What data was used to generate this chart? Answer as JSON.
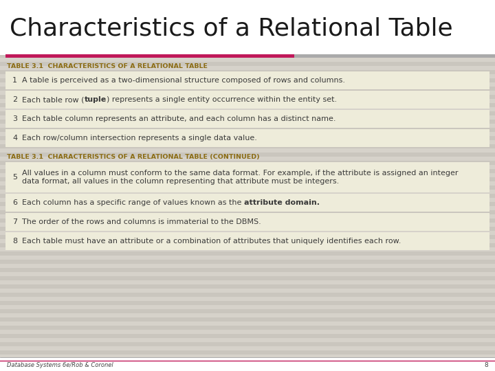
{
  "title": "Characteristics of a Relational Table",
  "title_color": "#1a1a1a",
  "title_fontsize": 26,
  "slide_bg": "#d6d2ca",
  "stripe_bg": "#cac6be",
  "content_bg": "#eeecda",
  "header_line_color1": "#c0185a",
  "header_line_color2": "#888888",
  "table_label_color": "#8b6c14",
  "table_label_1": "TABLE 3.1  CHARACTERISTICS OF A RELATIONAL TABLE",
  "table_label_2": "TABLE 3.1  CHARACTERISTICS OF A RELATIONAL TABLE (CONTINUED)",
  "rows_group1": [
    {
      "num": "1",
      "parts": [
        {
          "t": "A table is perceived as a two-dimensional structure composed of rows and columns.",
          "b": false
        }
      ]
    },
    {
      "num": "2",
      "parts": [
        {
          "t": "Each table row (",
          "b": false
        },
        {
          "t": "tuple",
          "b": true
        },
        {
          "t": ") represents a single entity occurrence within the entity set.",
          "b": false
        }
      ]
    },
    {
      "num": "3",
      "parts": [
        {
          "t": "Each table column represents an attribute, and each column has a distinct name.",
          "b": false
        }
      ]
    },
    {
      "num": "4",
      "parts": [
        {
          "t": "Each row/column intersection represents a single data value.",
          "b": false
        }
      ]
    }
  ],
  "rows_group2": [
    {
      "num": "5",
      "parts": [
        {
          "t": "All values in a column must conform to the same data format. For example, if the attribute is assigned an integer\ndata format, all values in the column representing that attribute must be integers.",
          "b": false
        }
      ]
    },
    {
      "num": "6",
      "parts": [
        {
          "t": "Each column has a specific range of values known as the ",
          "b": false
        },
        {
          "t": "attribute domain.",
          "b": true
        }
      ]
    },
    {
      "num": "7",
      "parts": [
        {
          "t": "The order of the rows and columns is immaterial to the DBMS.",
          "b": false
        }
      ]
    },
    {
      "num": "8",
      "parts": [
        {
          "t": "Each table must have an attribute or a combination of attributes that uniquely identifies each row.",
          "b": false
        }
      ]
    }
  ],
  "footer_text": "Database Systems 6e/Rob & Coronel",
  "footer_page": "8",
  "row_text_color": "#3a3a3a",
  "row_text_fontsize": 8.0,
  "label_fontsize": 6.8,
  "num_fontsize": 8.0
}
